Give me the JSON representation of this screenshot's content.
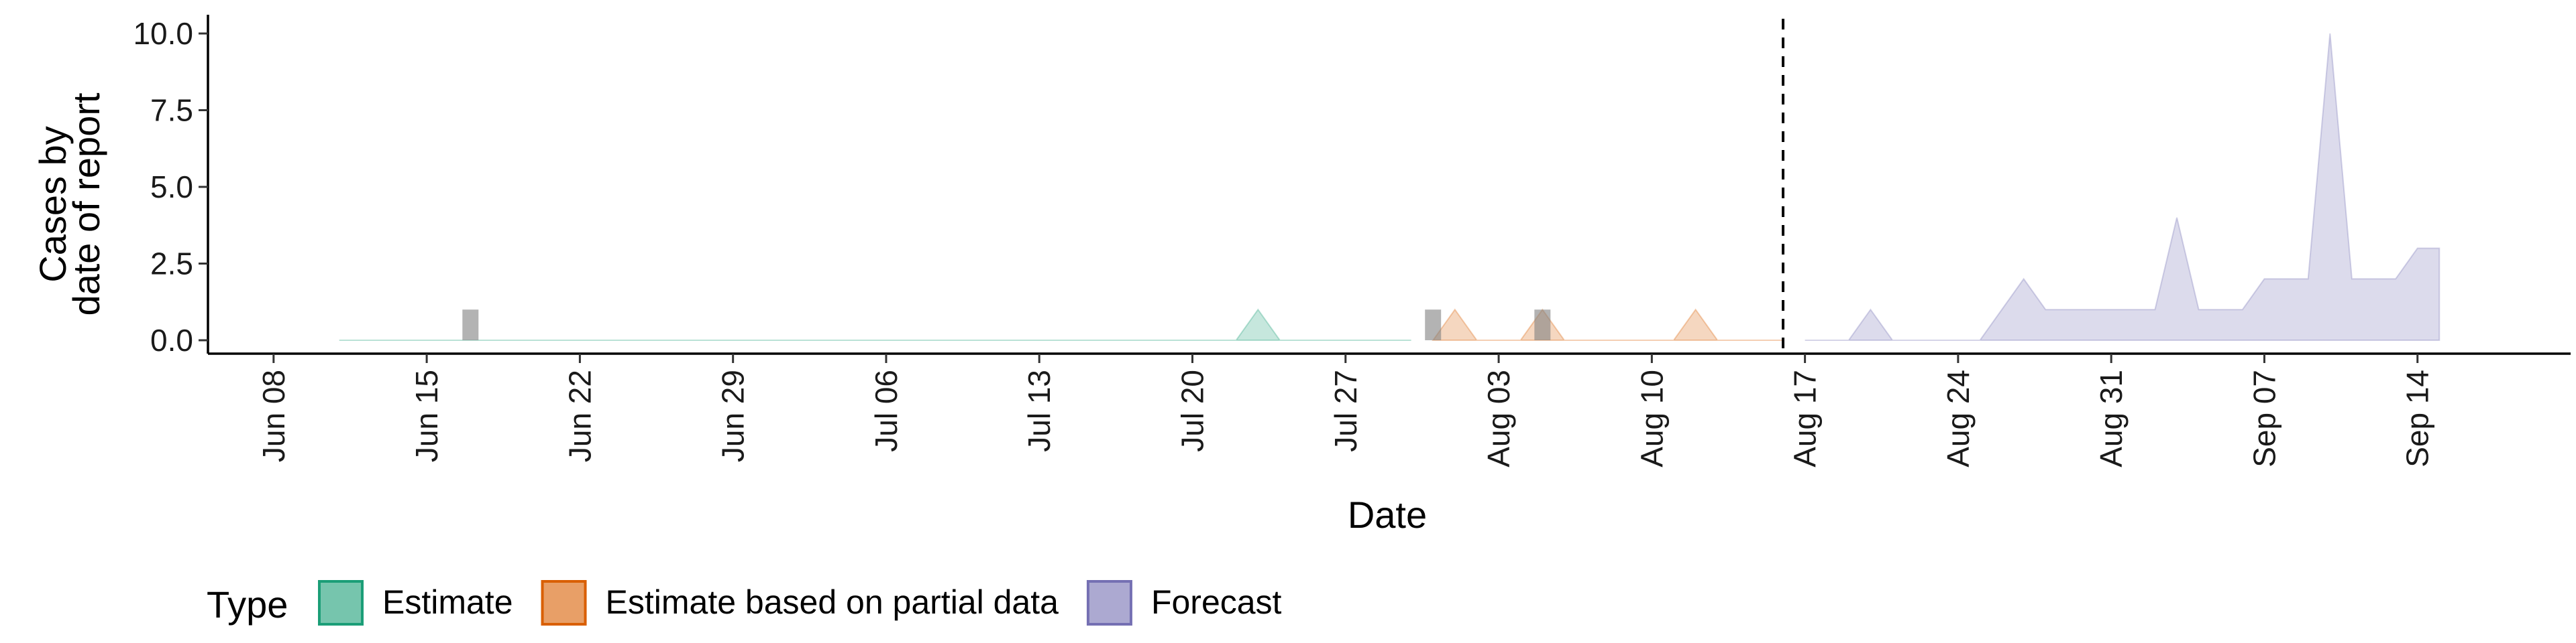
{
  "chart_data": {
    "type": "area",
    "ylabel": [
      "Cases by",
      "date of report"
    ],
    "xlabel": "Date",
    "ylim": [
      0,
      10
    ],
    "y_ticks": [
      "0.0",
      "2.5",
      "5.0",
      "7.5",
      "10.0"
    ],
    "x_range": [
      "2020-06-05",
      "2020-09-21"
    ],
    "x_tick_labels": [
      {
        "date": "2020-06-08",
        "label": "Jun 08"
      },
      {
        "date": "2020-06-15",
        "label": "Jun 15"
      },
      {
        "date": "2020-06-22",
        "label": "Jun 22"
      },
      {
        "date": "2020-06-29",
        "label": "Jun 29"
      },
      {
        "date": "2020-07-06",
        "label": "Jul 06"
      },
      {
        "date": "2020-07-13",
        "label": "Jul 13"
      },
      {
        "date": "2020-07-20",
        "label": "Jul 20"
      },
      {
        "date": "2020-07-27",
        "label": "Jul 27"
      },
      {
        "date": "2020-08-03",
        "label": "Aug 03"
      },
      {
        "date": "2020-08-10",
        "label": "Aug 10"
      },
      {
        "date": "2020-08-17",
        "label": "Aug 17"
      },
      {
        "date": "2020-08-24",
        "label": "Aug 24"
      },
      {
        "date": "2020-08-31",
        "label": "Aug 31"
      },
      {
        "date": "2020-09-07",
        "label": "Sep 07"
      },
      {
        "date": "2020-09-14",
        "label": "Sep 14"
      }
    ],
    "forecast_date": "2020-08-16",
    "legend_title": "Type",
    "legend_position": "bottom",
    "series": [
      {
        "name": "Estimate",
        "color": "#1b9e77",
        "points": [
          [
            "2020-06-11",
            0
          ],
          [
            "2020-07-22",
            0
          ],
          [
            "2020-07-23",
            1
          ],
          [
            "2020-07-24",
            0
          ],
          [
            "2020-07-30",
            0
          ]
        ]
      },
      {
        "name": "Estimate based on partial data",
        "color": "#d95f02",
        "points": [
          [
            "2020-07-31",
            0
          ],
          [
            "2020-08-01",
            1
          ],
          [
            "2020-08-02",
            0
          ],
          [
            "2020-08-04",
            0
          ],
          [
            "2020-08-05",
            1
          ],
          [
            "2020-08-06",
            0
          ],
          [
            "2020-08-11",
            0
          ],
          [
            "2020-08-12",
            1
          ],
          [
            "2020-08-13",
            0
          ],
          [
            "2020-08-16",
            0
          ]
        ]
      },
      {
        "name": "Forecast",
        "color": "#7570b3",
        "points": [
          [
            "2020-08-17",
            0
          ],
          [
            "2020-08-19",
            0
          ],
          [
            "2020-08-20",
            1
          ],
          [
            "2020-08-21",
            0
          ],
          [
            "2020-08-25",
            0
          ],
          [
            "2020-08-27",
            2
          ],
          [
            "2020-08-28",
            1
          ],
          [
            "2020-09-02",
            1
          ],
          [
            "2020-09-03",
            4
          ],
          [
            "2020-09-04",
            1
          ],
          [
            "2020-09-06",
            1
          ],
          [
            "2020-09-07",
            2
          ],
          [
            "2020-09-09",
            2
          ],
          [
            "2020-09-10",
            10
          ],
          [
            "2020-09-11",
            2
          ],
          [
            "2020-09-13",
            2
          ],
          [
            "2020-09-14",
            3
          ],
          [
            "2020-09-15",
            3
          ]
        ]
      }
    ],
    "observed_bars": [
      {
        "date": "2020-06-17",
        "value": 1
      },
      {
        "date": "2020-07-31",
        "value": 1
      },
      {
        "date": "2020-08-05",
        "value": 1
      }
    ]
  }
}
